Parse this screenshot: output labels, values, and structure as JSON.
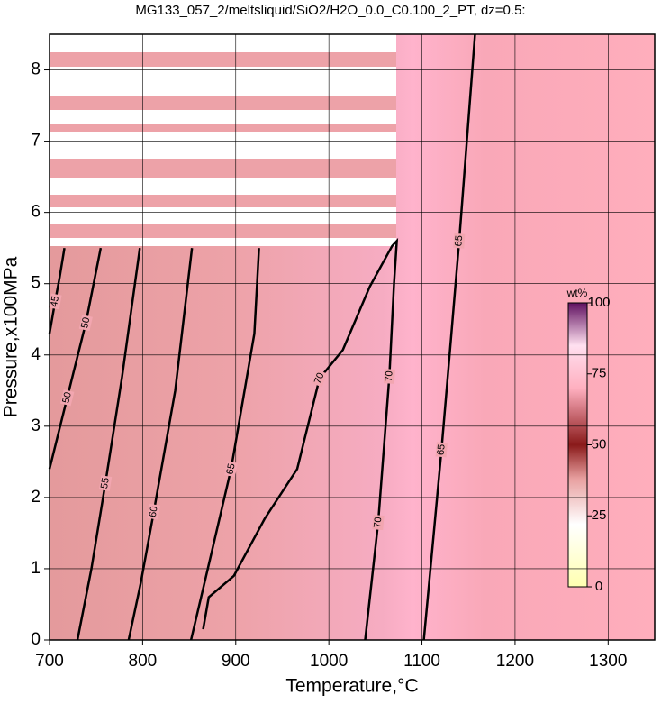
{
  "chart_data": {
    "type": "contour",
    "title": "MG133_057_2/meltsliquid/SiO2/H2O_0.0_C0.100_2_PT, dz=0.5:",
    "xlabel": "Temperature,°C",
    "ylabel": "Pressure,x100MPa",
    "xlim": [
      700,
      1350
    ],
    "xticks": [
      700,
      800,
      900,
      1000,
      1100,
      1200,
      1300
    ],
    "ylim": [
      0,
      8.5
    ],
    "yticks": [
      0,
      1,
      2,
      3,
      4,
      5,
      6,
      7,
      8
    ],
    "grid": true,
    "line_color": "#000000",
    "contours": [
      {
        "level": 45,
        "x": [
          700,
          706,
          711,
          716
        ],
        "y": [
          4.3,
          4.75,
          5.1,
          5.5
        ]
      },
      {
        "level": 50,
        "x": [
          700,
          719,
          739,
          755
        ],
        "y": [
          2.4,
          3.4,
          4.45,
          5.5
        ]
      },
      {
        "level": 55,
        "x": [
          730,
          745,
          760,
          778,
          797
        ],
        "y": [
          0,
          1.0,
          2.2,
          3.7,
          5.5
        ]
      },
      {
        "level": 60,
        "x": [
          785,
          798,
          812,
          835,
          853
        ],
        "y": [
          0,
          0.8,
          1.8,
          3.5,
          5.5
        ]
      },
      {
        "level": 65,
        "x": [
          852,
          870,
          895,
          920,
          925
        ],
        "y": [
          0,
          1.0,
          2.4,
          4.3,
          5.5
        ]
      },
      {
        "level": 70,
        "x": [
          865,
          871,
          898,
          931,
          966,
          990,
          1015,
          1044,
          1068,
          1073,
          1070,
          1065,
          1053,
          1039
        ],
        "y": [
          0.15,
          0.6,
          0.9,
          1.7,
          2.4,
          3.67,
          4.07,
          4.96,
          5.53,
          5.6,
          5.0,
          3.7,
          1.65,
          0
        ]
      },
      {
        "level": 65,
        "x": [
          1102,
          1112,
          1121,
          1131,
          1140,
          1157
        ],
        "y": [
          0,
          1.4,
          2.67,
          4.2,
          5.6,
          8.5
        ]
      }
    ],
    "colorbar": {
      "label": "wt%",
      "lim": [
        0,
        100
      ],
      "ticks": [
        0,
        25,
        50,
        75,
        100
      ]
    }
  }
}
